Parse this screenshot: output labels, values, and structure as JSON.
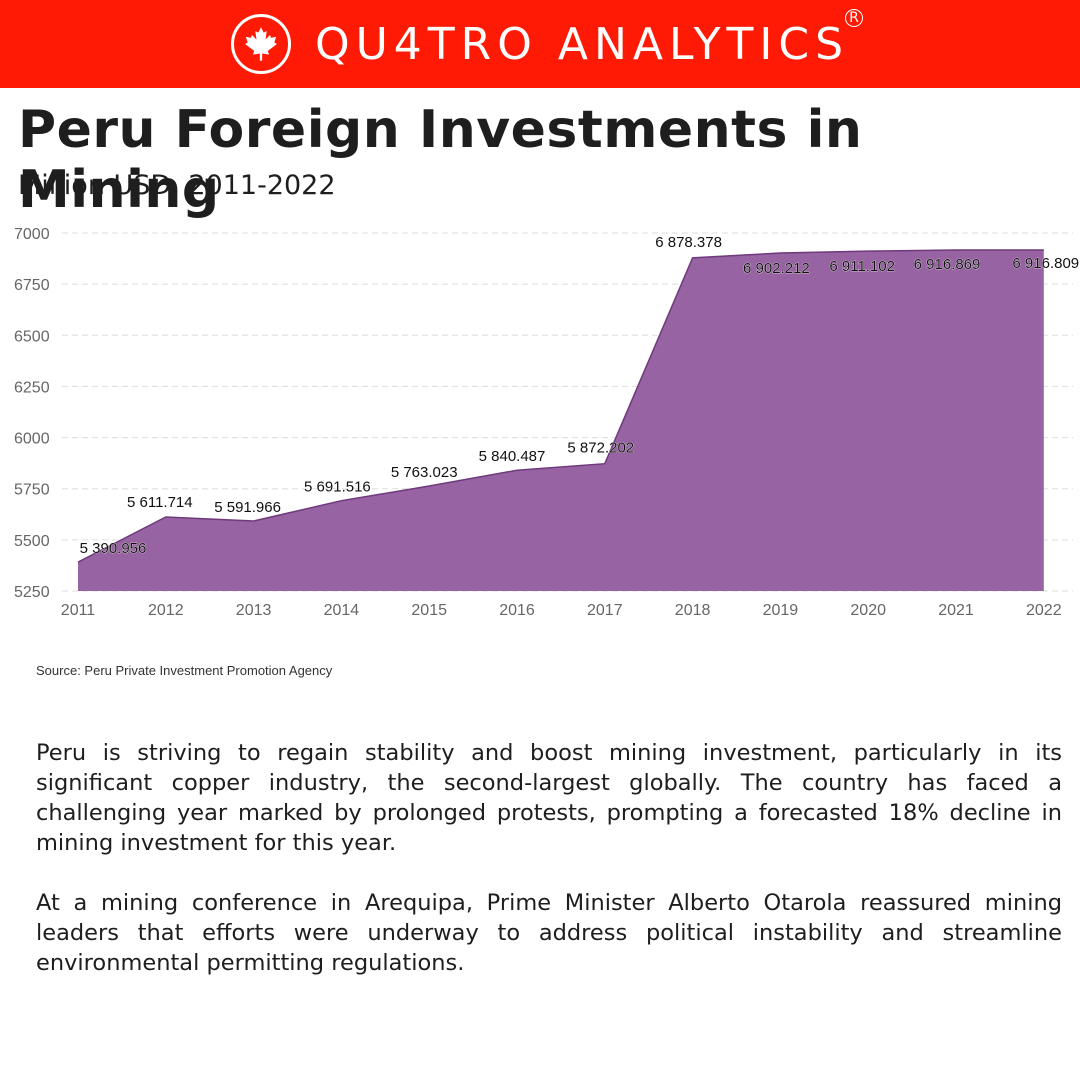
{
  "header": {
    "brand": "QU4TRO ANALYTICS",
    "registered": "R",
    "icon": "maple-leaf-icon",
    "background_color": "#ff1a05"
  },
  "title": "Peru Foreign Investments in Mining",
  "subtitle": "Million USD, 2011-2022",
  "chart_data": {
    "type": "area",
    "x": [
      "2011",
      "2012",
      "2013",
      "2014",
      "2015",
      "2016",
      "2017",
      "2018",
      "2019",
      "2020",
      "2021",
      "2022"
    ],
    "values": [
      5390.956,
      5611.714,
      5591.966,
      5691.516,
      5763.023,
      5840.487,
      5872.202,
      6878.378,
      6902.212,
      6911.102,
      6916.869,
      6916.809
    ],
    "data_labels": [
      "5 390.956",
      "5 611.714",
      "5 591.966",
      "5 691.516",
      "5 763.023",
      "5 840.487",
      "5 872.202",
      "6 878.378",
      "6 902.212",
      "6 911.102",
      "6 916.869",
      "6 916.809"
    ],
    "yticks": [
      5250,
      5500,
      5750,
      6000,
      6250,
      6500,
      6750,
      7000
    ],
    "ylim": [
      5250,
      7000
    ],
    "grid": "horizontal-dashed",
    "legend": "none",
    "fill_color": "#9863a2",
    "line_color": "#6f3a7b"
  },
  "source": "Source: Peru Private Investment Promotion Agency",
  "paragraphs": [
    "Peru is striving to regain stability and boost mining investment, particularly in its significant copper industry, the second-largest globally. The country has faced a challenging year marked by prolonged protests, prompting a forecasted 18% decline in mining investment for this year.",
    "At a mining conference in Arequipa, Prime Minister Alberto Otarola reassured mining leaders that efforts were underway to address political instability and streamline environmental permitting regulations."
  ]
}
